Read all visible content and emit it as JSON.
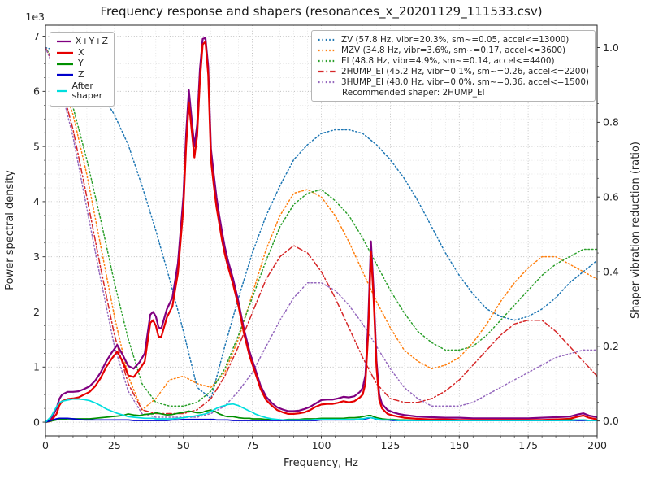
{
  "chart_data": {
    "type": "line",
    "title": "Frequency response and shapers (resonances_x_20201129_111533.csv)",
    "xlabel": "Frequency, Hz",
    "ylabel_left": "Power spectral density",
    "ylabel_right": "Shaper vibration reduction (ratio)",
    "y_left_multiplier": "1e3",
    "x_ticks": [
      0,
      25,
      50,
      75,
      100,
      125,
      150,
      175,
      200
    ],
    "x_minor_step": 5,
    "y_left_ticks": [
      0,
      1,
      2,
      3,
      4,
      5,
      6,
      7
    ],
    "y_left_minor_step": 0.25,
    "y_right_ticks": [
      0,
      0.2,
      0.4,
      0.6,
      0.8,
      1.0
    ],
    "xlim": [
      0,
      200
    ],
    "ylim_left": [
      0,
      7
    ],
    "ylim_right": [
      0,
      1.0
    ],
    "grid": "both",
    "recommended": "Recommended shaper: 2HUMP_EI",
    "freqs_psd": [
      0,
      2,
      4,
      5,
      6,
      8,
      10,
      12,
      14,
      16,
      18,
      20,
      22,
      24,
      26,
      28,
      30,
      32,
      34,
      36,
      38,
      39,
      40,
      41,
      42,
      44,
      46,
      48,
      50,
      51,
      52,
      53,
      54,
      55,
      56,
      57,
      58,
      59,
      60,
      61,
      62,
      63,
      64,
      65,
      66,
      68,
      70,
      72,
      74,
      75,
      76,
      78,
      80,
      82,
      84,
      86,
      88,
      90,
      92,
      94,
      96,
      98,
      100,
      102,
      104,
      106,
      108,
      110,
      112,
      114,
      115,
      116,
      117,
      118,
      119,
      120,
      121,
      122,
      124,
      126,
      128,
      130,
      135,
      140,
      145,
      150,
      155,
      160,
      165,
      170,
      175,
      180,
      185,
      190,
      193,
      195,
      197,
      200
    ],
    "psd_series": [
      {
        "name": "X+Y+Z",
        "color": "#800080",
        "values": [
          0.0,
          0.05,
          0.25,
          0.42,
          0.5,
          0.55,
          0.55,
          0.56,
          0.6,
          0.65,
          0.75,
          0.9,
          1.1,
          1.26,
          1.4,
          1.22,
          1.02,
          0.97,
          1.08,
          1.25,
          1.95,
          2.0,
          1.92,
          1.72,
          1.7,
          2.05,
          2.26,
          2.88,
          4.1,
          5.22,
          6.02,
          5.5,
          5.0,
          5.4,
          6.4,
          6.95,
          6.97,
          6.45,
          4.95,
          4.5,
          4.08,
          3.75,
          3.45,
          3.18,
          2.96,
          2.6,
          2.18,
          1.68,
          1.28,
          1.12,
          0.97,
          0.66,
          0.46,
          0.35,
          0.27,
          0.23,
          0.2,
          0.2,
          0.21,
          0.24,
          0.28,
          0.34,
          0.4,
          0.41,
          0.41,
          0.43,
          0.46,
          0.45,
          0.47,
          0.55,
          0.62,
          0.85,
          1.8,
          3.28,
          2.35,
          1.12,
          0.5,
          0.33,
          0.22,
          0.18,
          0.15,
          0.13,
          0.1,
          0.09,
          0.08,
          0.08,
          0.07,
          0.07,
          0.07,
          0.07,
          0.07,
          0.08,
          0.09,
          0.1,
          0.14,
          0.16,
          0.12,
          0.09
        ]
      },
      {
        "name": "X",
        "color": "#e60000",
        "values": [
          0.0,
          0.02,
          0.15,
          0.3,
          0.38,
          0.42,
          0.43,
          0.45,
          0.5,
          0.55,
          0.65,
          0.8,
          1.0,
          1.15,
          1.28,
          1.1,
          0.85,
          0.82,
          0.95,
          1.1,
          1.8,
          1.85,
          1.75,
          1.55,
          1.55,
          1.9,
          2.1,
          2.7,
          3.9,
          5.0,
          5.8,
          5.3,
          4.8,
          5.2,
          6.2,
          6.85,
          6.9,
          6.3,
          4.75,
          4.3,
          3.9,
          3.6,
          3.3,
          3.05,
          2.85,
          2.5,
          2.1,
          1.6,
          1.2,
          1.05,
          0.9,
          0.6,
          0.4,
          0.3,
          0.22,
          0.18,
          0.15,
          0.15,
          0.16,
          0.18,
          0.22,
          0.28,
          0.32,
          0.33,
          0.33,
          0.35,
          0.38,
          0.36,
          0.38,
          0.45,
          0.5,
          0.7,
          1.6,
          3.1,
          2.2,
          1.0,
          0.4,
          0.25,
          0.15,
          0.12,
          0.1,
          0.08,
          0.06,
          0.05,
          0.05,
          0.04,
          0.04,
          0.04,
          0.04,
          0.04,
          0.04,
          0.04,
          0.05,
          0.06,
          0.1,
          0.12,
          0.08,
          0.05
        ]
      },
      {
        "name": "Y",
        "color": "#009000",
        "values": [
          0.0,
          0.02,
          0.04,
          0.05,
          0.05,
          0.06,
          0.06,
          0.06,
          0.06,
          0.06,
          0.07,
          0.08,
          0.09,
          0.1,
          0.11,
          0.12,
          0.15,
          0.13,
          0.12,
          0.14,
          0.15,
          0.15,
          0.17,
          0.16,
          0.15,
          0.13,
          0.14,
          0.16,
          0.18,
          0.19,
          0.2,
          0.19,
          0.18,
          0.17,
          0.17,
          0.18,
          0.2,
          0.21,
          0.22,
          0.2,
          0.18,
          0.15,
          0.13,
          0.11,
          0.1,
          0.1,
          0.08,
          0.07,
          0.07,
          0.06,
          0.06,
          0.06,
          0.05,
          0.05,
          0.04,
          0.04,
          0.05,
          0.05,
          0.05,
          0.06,
          0.06,
          0.06,
          0.07,
          0.07,
          0.07,
          0.07,
          0.07,
          0.08,
          0.08,
          0.09,
          0.1,
          0.11,
          0.12,
          0.12,
          0.1,
          0.08,
          0.07,
          0.06,
          0.05,
          0.05,
          0.04,
          0.04,
          0.03,
          0.03,
          0.03,
          0.03,
          0.03,
          0.03,
          0.03,
          0.03,
          0.03,
          0.03,
          0.03,
          0.04,
          0.04,
          0.04,
          0.03,
          0.03
        ]
      },
      {
        "name": "Z",
        "color": "#0000cc",
        "values": [
          0.0,
          0.03,
          0.06,
          0.07,
          0.07,
          0.07,
          0.06,
          0.05,
          0.04,
          0.04,
          0.04,
          0.04,
          0.04,
          0.04,
          0.04,
          0.04,
          0.04,
          0.03,
          0.03,
          0.03,
          0.03,
          0.03,
          0.03,
          0.03,
          0.03,
          0.03,
          0.04,
          0.04,
          0.05,
          0.05,
          0.05,
          0.05,
          0.05,
          0.05,
          0.05,
          0.05,
          0.05,
          0.05,
          0.05,
          0.05,
          0.04,
          0.04,
          0.04,
          0.04,
          0.04,
          0.03,
          0.03,
          0.03,
          0.03,
          0.03,
          0.03,
          0.03,
          0.03,
          0.03,
          0.03,
          0.03,
          0.03,
          0.03,
          0.03,
          0.03,
          0.03,
          0.03,
          0.04,
          0.04,
          0.04,
          0.04,
          0.04,
          0.04,
          0.04,
          0.05,
          0.05,
          0.06,
          0.07,
          0.08,
          0.07,
          0.05,
          0.04,
          0.04,
          0.04,
          0.03,
          0.03,
          0.03,
          0.03,
          0.03,
          0.03,
          0.03,
          0.03,
          0.03,
          0.03,
          0.03,
          0.03,
          0.03,
          0.03,
          0.03,
          0.03,
          0.03,
          0.03,
          0.03
        ]
      },
      {
        "name": "After shaper",
        "color": "#00dede",
        "values": [
          0.0,
          0.1,
          0.28,
          0.35,
          0.38,
          0.4,
          0.42,
          0.42,
          0.41,
          0.39,
          0.35,
          0.3,
          0.24,
          0.2,
          0.16,
          0.13,
          0.1,
          0.09,
          0.08,
          0.07,
          0.07,
          0.07,
          0.06,
          0.06,
          0.06,
          0.06,
          0.06,
          0.07,
          0.08,
          0.09,
          0.1,
          0.1,
          0.11,
          0.12,
          0.13,
          0.14,
          0.15,
          0.17,
          0.2,
          0.22,
          0.25,
          0.27,
          0.29,
          0.3,
          0.32,
          0.33,
          0.3,
          0.25,
          0.2,
          0.18,
          0.15,
          0.11,
          0.08,
          0.06,
          0.05,
          0.04,
          0.04,
          0.04,
          0.04,
          0.04,
          0.04,
          0.05,
          0.05,
          0.05,
          0.05,
          0.05,
          0.05,
          0.05,
          0.05,
          0.06,
          0.06,
          0.07,
          0.08,
          0.08,
          0.07,
          0.06,
          0.05,
          0.04,
          0.04,
          0.04,
          0.03,
          0.03,
          0.03,
          0.03,
          0.03,
          0.03,
          0.03,
          0.03,
          0.03,
          0.03,
          0.03,
          0.03,
          0.03,
          0.03,
          0.04,
          0.04,
          0.03,
          0.03
        ]
      }
    ],
    "freqs_shaper": [
      0,
      5,
      10,
      15,
      20,
      25,
      30,
      35,
      40,
      45,
      50,
      55,
      60,
      65,
      70,
      75,
      80,
      85,
      90,
      95,
      100,
      105,
      110,
      115,
      120,
      125,
      130,
      135,
      140,
      145,
      150,
      155,
      160,
      165,
      170,
      175,
      180,
      185,
      190,
      195,
      200
    ],
    "shaper_series": [
      {
        "name": "ZV",
        "label": "ZV (57.8 Hz, vibr=20.3%, sm~=0.05, accel<=13000)",
        "color": "#1f77b4",
        "dash": "dotted",
        "values": [
          1.0,
          0.99,
          0.97,
          0.93,
          0.88,
          0.82,
          0.74,
          0.63,
          0.51,
          0.38,
          0.24,
          0.09,
          0.06,
          0.2,
          0.33,
          0.45,
          0.55,
          0.63,
          0.7,
          0.74,
          0.77,
          0.78,
          0.78,
          0.77,
          0.74,
          0.7,
          0.65,
          0.59,
          0.52,
          0.45,
          0.39,
          0.34,
          0.3,
          0.28,
          0.27,
          0.28,
          0.3,
          0.33,
          0.37,
          0.4,
          0.43
        ]
      },
      {
        "name": "MZV",
        "label": "MZV (34.8 Hz, vibr=3.6%, sm~=0.17, accel<=3600)",
        "color": "#ff7f0e",
        "dash": "dotted",
        "values": [
          1.0,
          0.93,
          0.82,
          0.66,
          0.47,
          0.28,
          0.12,
          0.03,
          0.06,
          0.11,
          0.12,
          0.1,
          0.09,
          0.13,
          0.22,
          0.34,
          0.46,
          0.55,
          0.61,
          0.62,
          0.6,
          0.55,
          0.48,
          0.4,
          0.32,
          0.25,
          0.19,
          0.16,
          0.14,
          0.15,
          0.17,
          0.21,
          0.26,
          0.32,
          0.37,
          0.41,
          0.44,
          0.44,
          0.42,
          0.4,
          0.38
        ]
      },
      {
        "name": "EI",
        "label": "EI (48.8 Hz, vibr=4.9%, sm~=0.14, accel<=4400)",
        "color": "#2ca02c",
        "dash": "dotted",
        "values": [
          1.0,
          0.94,
          0.84,
          0.7,
          0.54,
          0.37,
          0.22,
          0.1,
          0.05,
          0.04,
          0.04,
          0.05,
          0.08,
          0.14,
          0.23,
          0.33,
          0.43,
          0.52,
          0.58,
          0.61,
          0.62,
          0.59,
          0.55,
          0.49,
          0.42,
          0.35,
          0.29,
          0.24,
          0.21,
          0.19,
          0.19,
          0.2,
          0.23,
          0.27,
          0.31,
          0.35,
          0.39,
          0.42,
          0.44,
          0.46,
          0.46
        ]
      },
      {
        "name": "2HUMP_EI",
        "label": "2HUMP_EI (45.2 Hz, vibr=0.1%, sm~=0.26, accel<=2200)",
        "color": "#d62728",
        "dash": "dashdot",
        "values": [
          1.0,
          0.92,
          0.78,
          0.6,
          0.41,
          0.23,
          0.1,
          0.03,
          0.02,
          0.02,
          0.02,
          0.03,
          0.06,
          0.12,
          0.2,
          0.29,
          0.38,
          0.44,
          0.47,
          0.45,
          0.4,
          0.33,
          0.25,
          0.17,
          0.1,
          0.06,
          0.05,
          0.05,
          0.06,
          0.08,
          0.11,
          0.15,
          0.19,
          0.23,
          0.26,
          0.27,
          0.27,
          0.24,
          0.2,
          0.16,
          0.12
        ]
      },
      {
        "name": "3HUMP_EI",
        "label": "3HUMP_EI (48.0 Hz, vibr=0.0%, sm~=0.36, accel<=1500)",
        "color": "#9467bd",
        "dash": "dotted",
        "values": [
          1.0,
          0.91,
          0.76,
          0.57,
          0.38,
          0.2,
          0.08,
          0.02,
          0.01,
          0.01,
          0.01,
          0.01,
          0.02,
          0.04,
          0.08,
          0.13,
          0.2,
          0.27,
          0.33,
          0.37,
          0.37,
          0.35,
          0.31,
          0.26,
          0.2,
          0.14,
          0.09,
          0.06,
          0.04,
          0.04,
          0.04,
          0.05,
          0.07,
          0.09,
          0.11,
          0.13,
          0.15,
          0.17,
          0.18,
          0.19,
          0.19
        ]
      }
    ]
  }
}
